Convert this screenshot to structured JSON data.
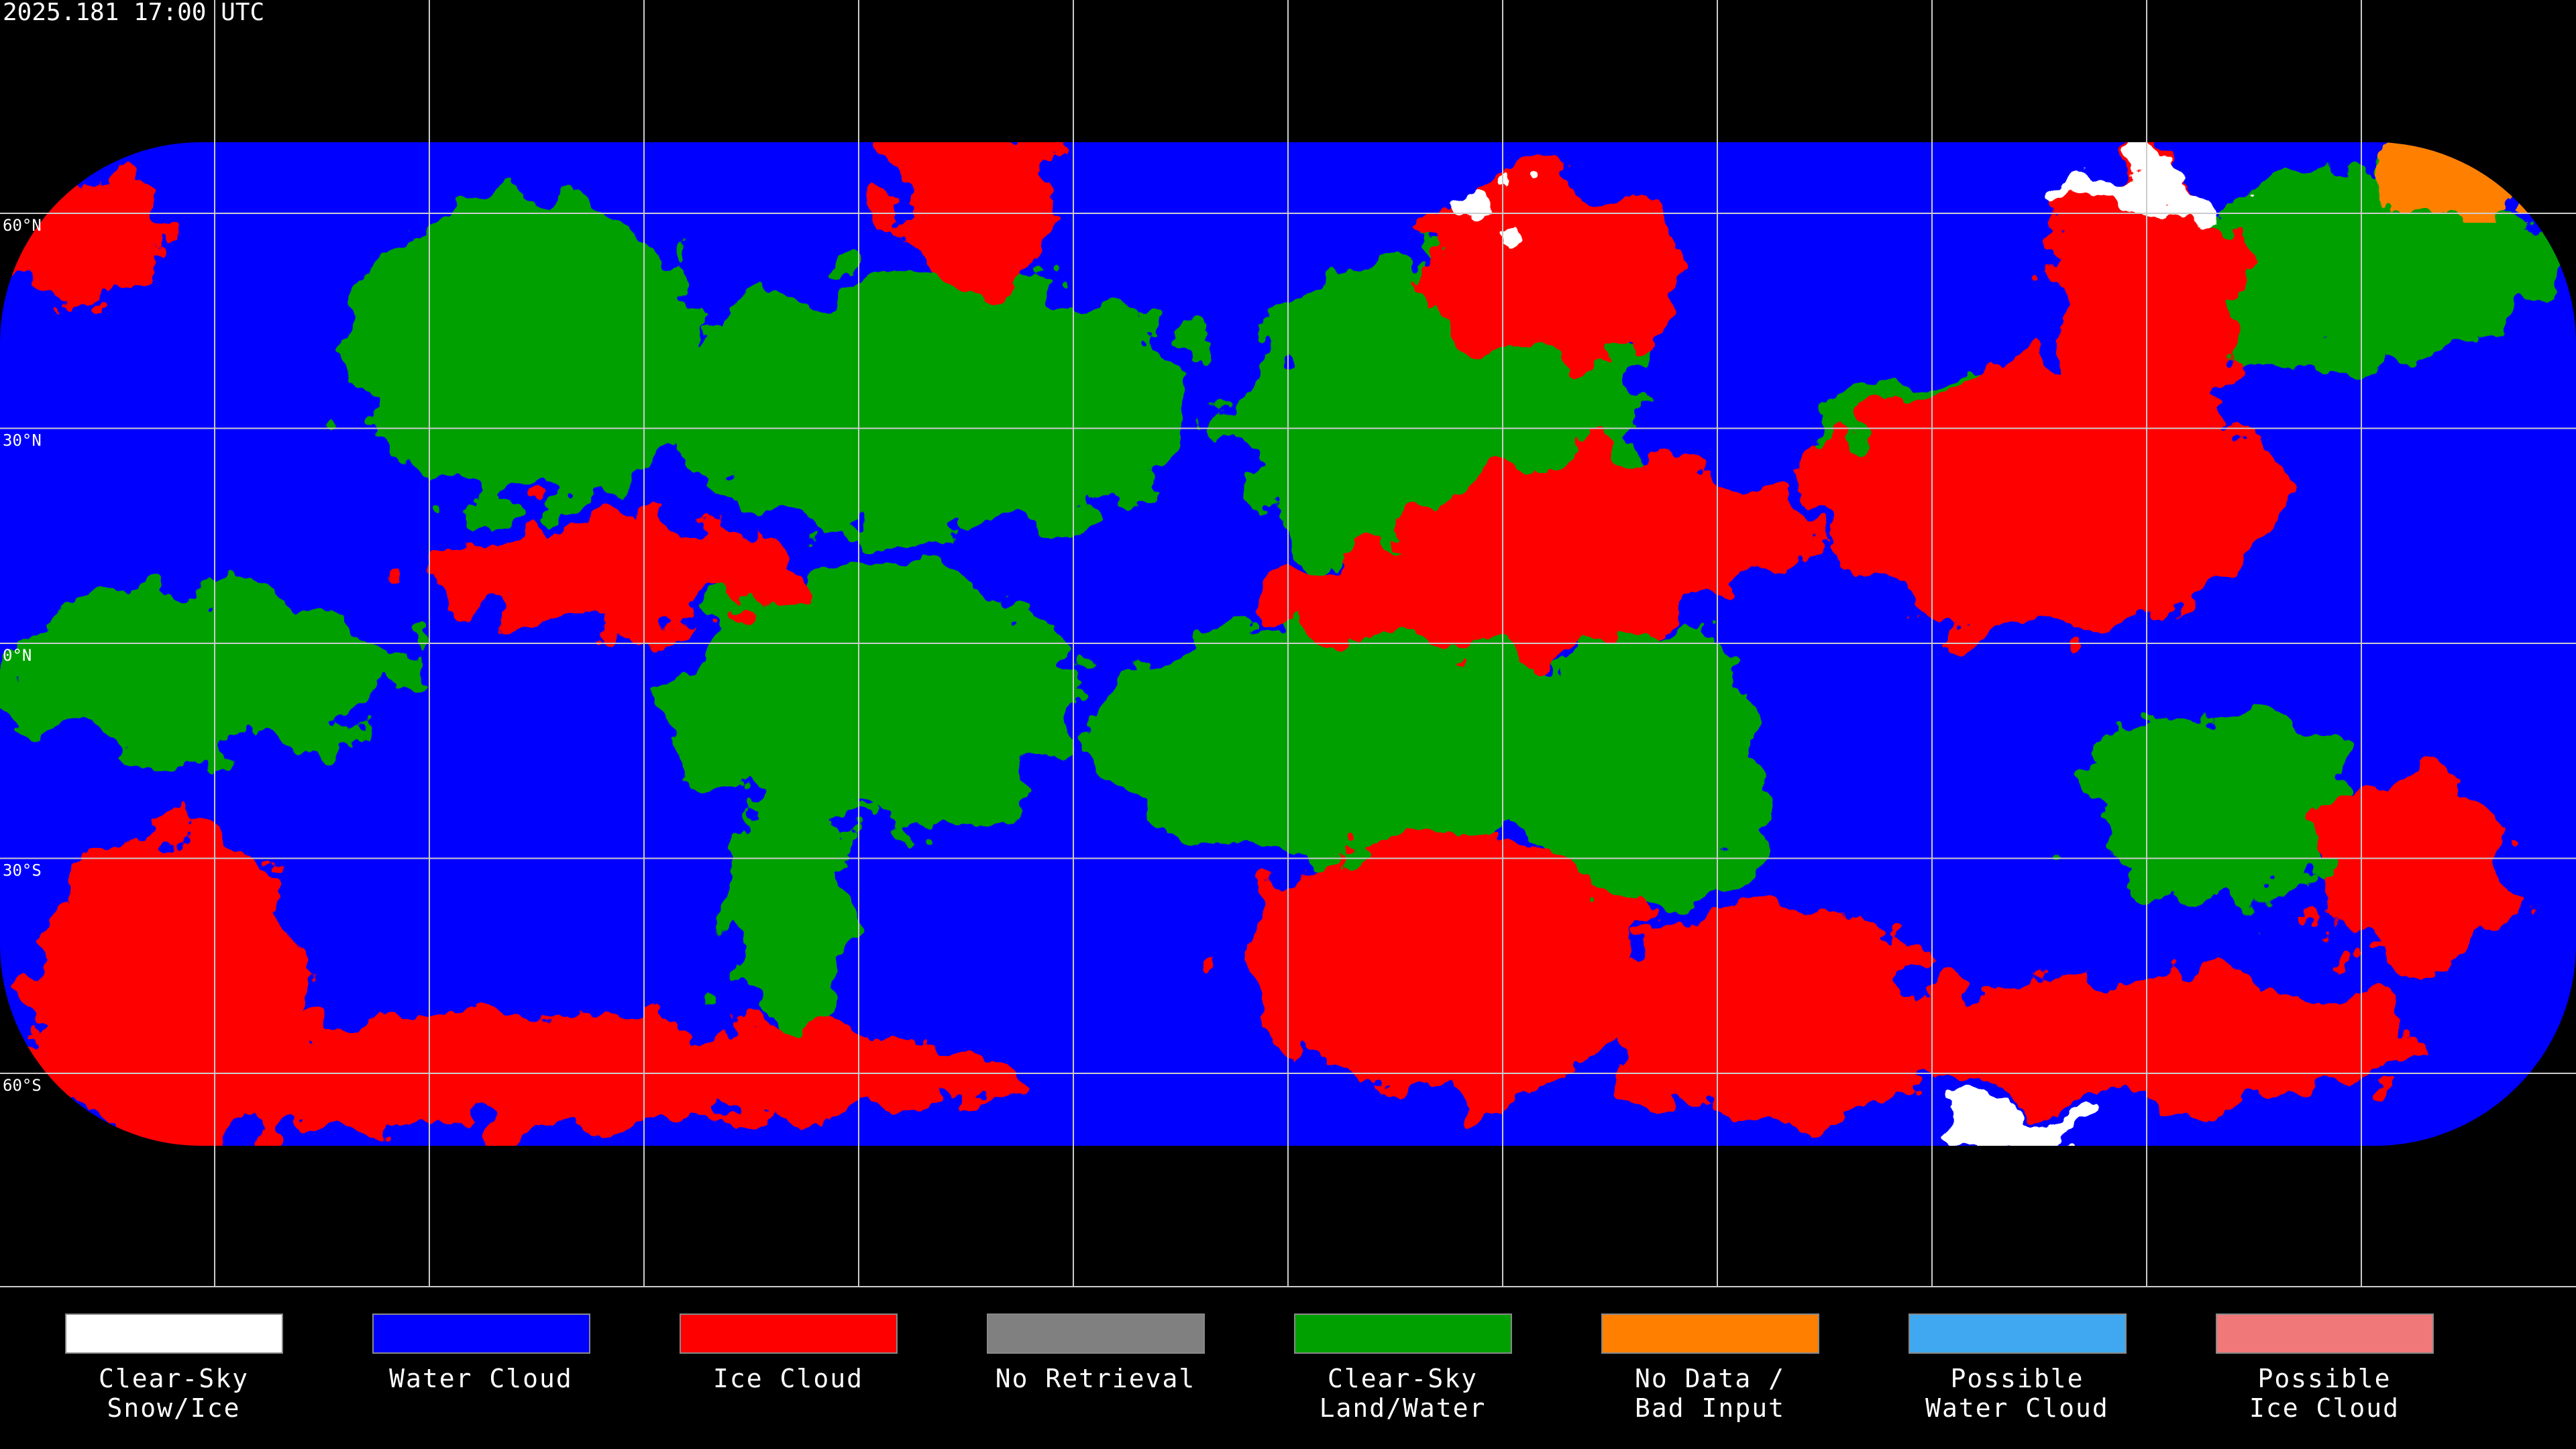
{
  "header": {
    "title": "2025.181 17:00 UTC"
  },
  "map": {
    "latitude_labels": [
      "60°N",
      "30°N",
      "0°N",
      "30°S",
      "60°S"
    ]
  },
  "legend": {
    "items": [
      {
        "lines": [
          "Clear-Sky",
          "Snow/Ice"
        ],
        "color": "#ffffff"
      },
      {
        "lines": [
          "Water Cloud"
        ],
        "color": "#0000ff"
      },
      {
        "lines": [
          "Ice Cloud"
        ],
        "color": "#ff0000"
      },
      {
        "lines": [
          "No Retrieval"
        ],
        "color": "#808080"
      },
      {
        "lines": [
          "Clear-Sky",
          "Land/Water"
        ],
        "color": "#00a000"
      },
      {
        "lines": [
          "No Data /",
          "Bad Input"
        ],
        "color": "#ff8000"
      },
      {
        "lines": [
          "Possible",
          "Water Cloud"
        ],
        "color": "#40a8f0"
      },
      {
        "lines": [
          "Possible",
          "Ice Cloud"
        ],
        "color": "#f07878"
      }
    ]
  }
}
